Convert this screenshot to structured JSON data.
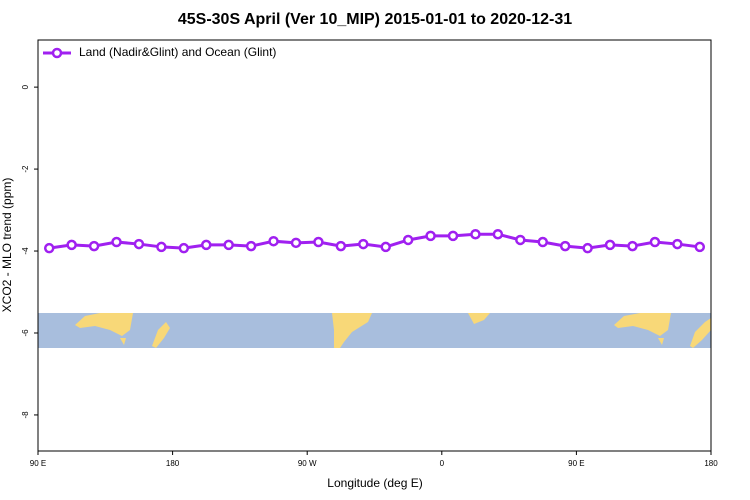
{
  "chart_data": {
    "type": "line",
    "title": "45S-30S April (Ver 10_MIP)   2015-01-01 to 2020-12-31",
    "x_label": "Longitude (deg E)",
    "y_label": "XCO2 - MLO trend (ppm)",
    "x": [
      97.5,
      112.5,
      127.5,
      142.5,
      157.5,
      172.5,
      187.5,
      202.5,
      217.5,
      232.5,
      247.5,
      262.5,
      277.5,
      292.5,
      307.5,
      322.5,
      337.5,
      352.5,
      367.5,
      382.5,
      397.5,
      412.5,
      427.5,
      442.5,
      457.5,
      472.5,
      487.5,
      502.5,
      517.5,
      532.5
    ],
    "series": [
      {
        "name": "Land (Nadir&Glint) and Ocean (Glint)",
        "color": "#a020f0",
        "values": [
          -3.93,
          -3.85,
          -3.88,
          -3.78,
          -3.83,
          -3.9,
          -3.93,
          -3.85,
          -3.85,
          -3.88,
          -3.76,
          -3.8,
          -3.78,
          -3.88,
          -3.83,
          -3.9,
          -3.73,
          -3.63,
          -3.63,
          -3.59,
          -3.59,
          -3.73,
          -3.78,
          -3.88,
          -3.93,
          -3.85,
          -3.88,
          -3.78,
          -3.83,
          -3.9
        ]
      }
    ],
    "xlim": [
      90,
      540
    ],
    "xticks": [
      {
        "value": 90,
        "label": "90 E"
      },
      {
        "value": 180,
        "label": "180"
      },
      {
        "value": 270,
        "label": "90 W"
      },
      {
        "value": 360,
        "label": "0"
      },
      {
        "value": 450,
        "label": "90 E"
      },
      {
        "value": 540,
        "label": "180"
      }
    ],
    "ylim": [
      -8.88,
      1.15
    ],
    "yticks": [
      0,
      -2,
      -4,
      -6,
      -8
    ],
    "legend": "top-left"
  }
}
